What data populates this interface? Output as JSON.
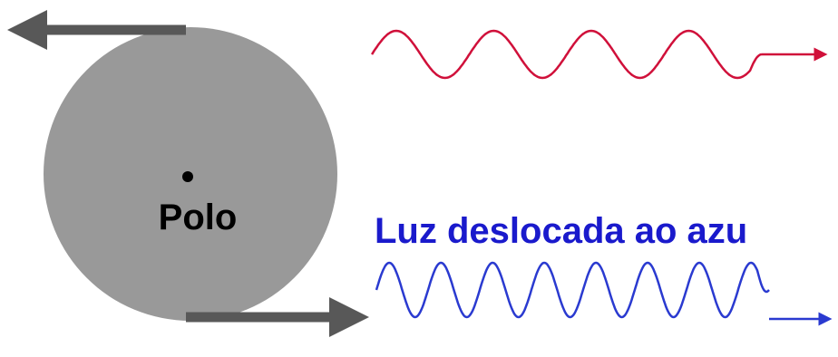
{
  "pole": {
    "label": "Polo"
  },
  "blue_shift": {
    "label": "Luz deslocada ao azu"
  }
}
